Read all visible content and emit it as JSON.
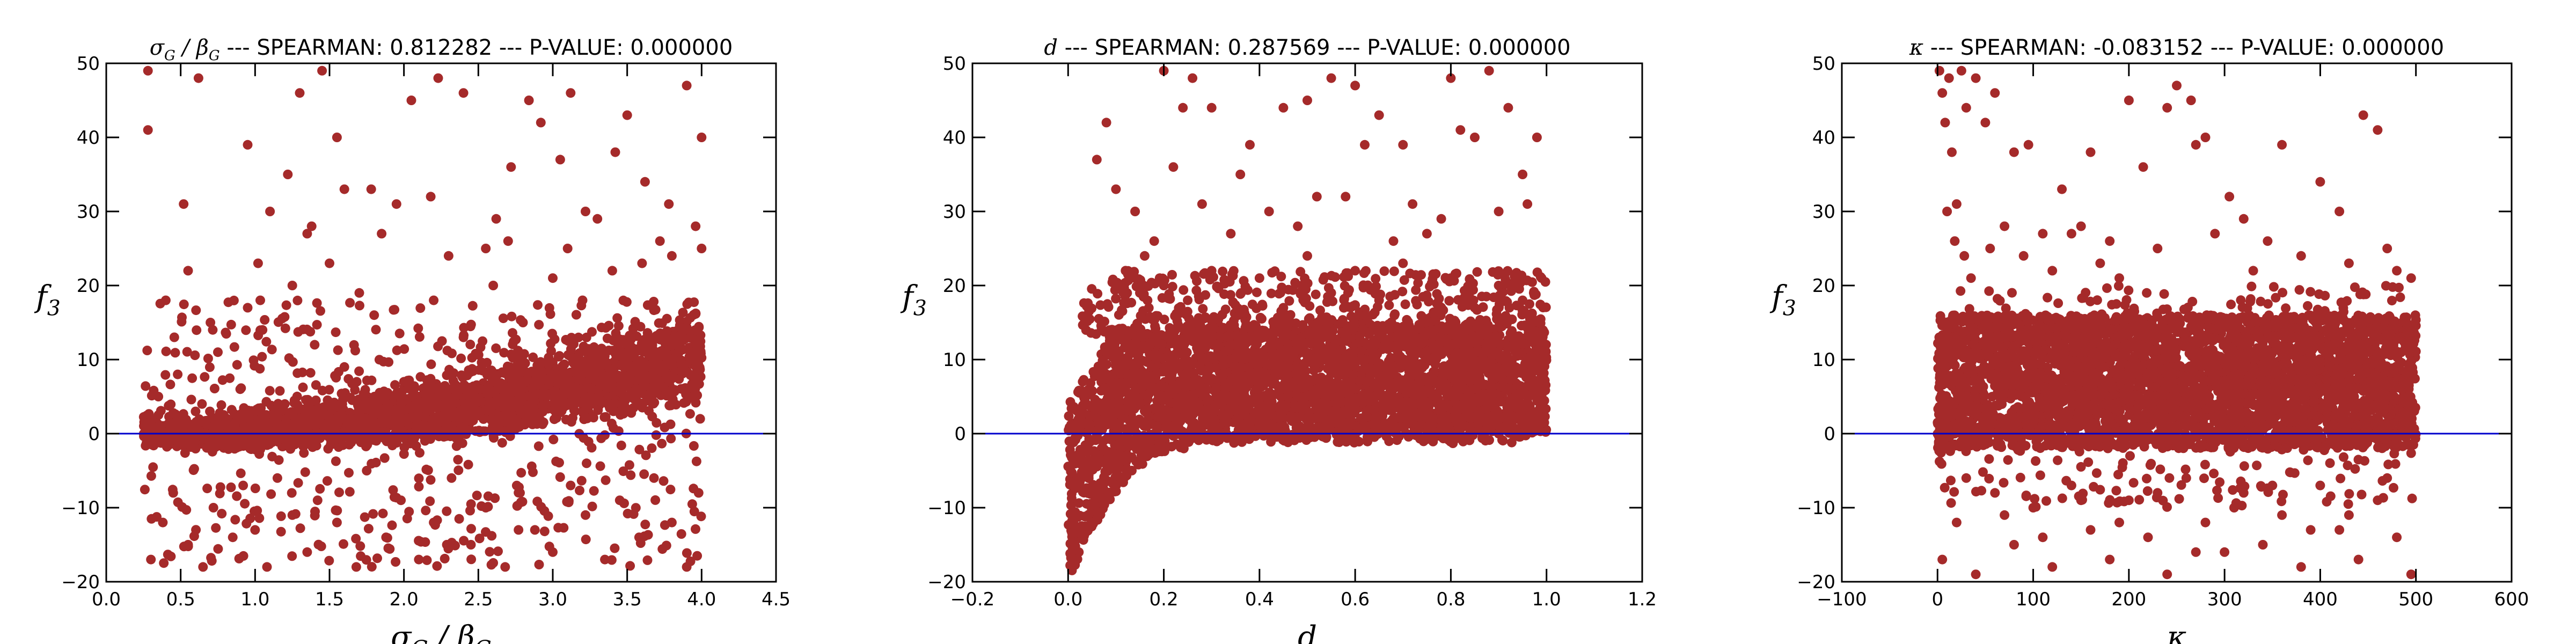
{
  "colors": {
    "points": "#a52a2a",
    "zero_line": "#0000cc",
    "axes": "#000000"
  },
  "panels": [
    {
      "title_prefix": "σ_G / β_G",
      "title_suffix": " --- SPEARMAN: 0.812282 --- P-VALUE: 0.000000",
      "xlabel": "σ_G / β_G",
      "ylabel": "f_3"
    },
    {
      "title_prefix": "d",
      "title_suffix": " --- SPEARMAN: 0.287569 --- P-VALUE: 0.000000",
      "xlabel": "d",
      "ylabel": "f_3"
    },
    {
      "title_prefix": "κ",
      "title_suffix": " --- SPEARMAN: -0.083152 --- P-VALUE: 0.000000",
      "xlabel": "κ",
      "ylabel": "f_3"
    }
  ],
  "chart_data": [
    {
      "type": "scatter",
      "title": "σ_G / β_G --- SPEARMAN: 0.812282 --- P-VALUE: 0.000000",
      "xlabel": "σ_G / β_G",
      "ylabel": "f_3",
      "xlim": [
        0.0,
        4.5
      ],
      "ylim": [
        -20,
        50
      ],
      "xticks": [
        "0.0",
        "0.5",
        "1.0",
        "1.5",
        "2.0",
        "2.5",
        "3.0",
        "3.5",
        "4.0",
        "4.5"
      ],
      "yticks": [
        "−20",
        "−10",
        "0",
        "10",
        "20",
        "30",
        "40",
        "50"
      ],
      "reference_line_y": 0,
      "grid": false,
      "series": [
        {
          "color": "#a52a2a",
          "points": [
            [
              0.28,
              49
            ],
            [
              0.28,
              41
            ],
            [
              0.62,
              48
            ],
            [
              0.52,
              31
            ],
            [
              0.95,
              39
            ],
            [
              1.02,
              23
            ],
            [
              1.1,
              30
            ],
            [
              1.22,
              35
            ],
            [
              1.3,
              46
            ],
            [
              1.35,
              27
            ],
            [
              1.38,
              28
            ],
            [
              1.45,
              49
            ],
            [
              1.55,
              40
            ],
            [
              1.6,
              33
            ],
            [
              1.78,
              33
            ],
            [
              1.85,
              27
            ],
            [
              1.95,
              31
            ],
            [
              2.05,
              45
            ],
            [
              2.18,
              32
            ],
            [
              2.23,
              48
            ],
            [
              2.4,
              46
            ],
            [
              2.55,
              25
            ],
            [
              2.62,
              29
            ],
            [
              2.72,
              36
            ],
            [
              2.84,
              45
            ],
            [
              2.92,
              42
            ],
            [
              3.05,
              37
            ],
            [
              3.12,
              46
            ],
            [
              3.22,
              30
            ],
            [
              3.3,
              29
            ],
            [
              3.42,
              38
            ],
            [
              3.5,
              43
            ],
            [
              3.62,
              34
            ],
            [
              3.72,
              26
            ],
            [
              3.78,
              31
            ],
            [
              3.9,
              47
            ],
            [
              4.0,
              40
            ],
            [
              4.0,
              25
            ],
            [
              3.96,
              28
            ],
            [
              0.3,
              -17
            ],
            [
              0.38,
              -12
            ],
            [
              0.45,
              -8
            ],
            [
              0.55,
              -15
            ],
            [
              0.65,
              -18
            ],
            [
              0.72,
              -10
            ],
            [
              0.85,
              -14
            ],
            [
              0.92,
              -7
            ],
            [
              1.0,
              -13
            ],
            [
              1.08,
              -18
            ],
            [
              1.15,
              -6
            ],
            [
              1.25,
              -11
            ],
            [
              1.35,
              -16
            ],
            [
              1.42,
              -9
            ],
            [
              1.55,
              -12
            ],
            [
              1.68,
              -18
            ],
            [
              1.75,
              -5
            ],
            [
              1.88,
              -14
            ],
            [
              1.98,
              -9
            ],
            [
              2.1,
              -17
            ],
            [
              2.2,
              -12
            ],
            [
              2.32,
              -6
            ],
            [
              2.45,
              -15
            ],
            [
              2.55,
              -10
            ],
            [
              2.68,
              -18
            ],
            [
              2.78,
              -8
            ],
            [
              2.88,
              -13
            ],
            [
              3.0,
              -16
            ],
            [
              3.12,
              -7
            ],
            [
              3.22,
              -11
            ],
            [
              3.35,
              -17
            ],
            [
              3.45,
              -9
            ],
            [
              3.58,
              -14
            ],
            [
              3.68,
              -6
            ],
            [
              3.8,
              -12
            ],
            [
              3.9,
              -18
            ],
            [
              3.98,
              -8
            ],
            [
              0.35,
              5
            ],
            [
              0.48,
              8
            ],
            [
              0.6,
              3
            ],
            [
              0.75,
              11
            ],
            [
              0.9,
              6
            ],
            [
              1.05,
              14
            ],
            [
              1.2,
              4
            ],
            [
              1.4,
              12
            ],
            [
              1.6,
              9
            ],
            [
              1.8,
              16
            ],
            [
              2.0,
              7
            ],
            [
              2.2,
              18
            ],
            [
              2.4,
              13
            ],
            [
              2.6,
              20
            ],
            [
              2.8,
              15
            ],
            [
              3.0,
              21
            ],
            [
              3.2,
              18
            ],
            [
              3.4,
              22
            ],
            [
              3.6,
              23
            ],
            [
              3.8,
              24
            ],
            [
              0.4,
              18
            ],
            [
              0.55,
              22
            ],
            [
              0.7,
              15
            ],
            [
              0.95,
              17
            ],
            [
              1.25,
              20
            ],
            [
              1.5,
              23
            ],
            [
              1.7,
              19
            ],
            [
              2.3,
              24
            ],
            [
              2.7,
              26
            ],
            [
              3.1,
              25
            ]
          ]
        }
      ]
    },
    {
      "type": "scatter",
      "title": "d --- SPEARMAN: 0.287569 --- P-VALUE: 0.000000",
      "xlabel": "d",
      "ylabel": "f_3",
      "xlim": [
        -0.2,
        1.2
      ],
      "ylim": [
        -20,
        50
      ],
      "xticks": [
        "−0.2",
        "0.0",
        "0.2",
        "0.4",
        "0.6",
        "0.8",
        "1.0",
        "1.2"
      ],
      "yticks": [
        "−20",
        "−10",
        "0",
        "10",
        "20",
        "30",
        "40",
        "50"
      ],
      "reference_line_y": 0,
      "grid": false,
      "series": [
        {
          "color": "#a52a2a",
          "points": [
            [
              0.2,
              49
            ],
            [
              0.22,
              36
            ],
            [
              0.24,
              44
            ],
            [
              0.26,
              48
            ],
            [
              0.3,
              44
            ],
            [
              0.38,
              39
            ],
            [
              0.45,
              44
            ],
            [
              0.5,
              45
            ],
            [
              0.52,
              32
            ],
            [
              0.55,
              48
            ],
            [
              0.6,
              47
            ],
            [
              0.62,
              39
            ],
            [
              0.65,
              43
            ],
            [
              0.7,
              39
            ],
            [
              0.72,
              31
            ],
            [
              0.75,
              27
            ],
            [
              0.8,
              48
            ],
            [
              0.82,
              41
            ],
            [
              0.85,
              40
            ],
            [
              0.88,
              49
            ],
            [
              0.9,
              30
            ],
            [
              0.92,
              44
            ],
            [
              0.95,
              35
            ],
            [
              0.98,
              40
            ],
            [
              0.1,
              33
            ],
            [
              0.14,
              30
            ],
            [
              0.18,
              26
            ],
            [
              0.28,
              31
            ],
            [
              0.34,
              27
            ],
            [
              0.42,
              30
            ],
            [
              0.48,
              28
            ],
            [
              0.58,
              32
            ],
            [
              0.68,
              26
            ],
            [
              0.78,
              29
            ],
            [
              0.96,
              31
            ],
            [
              0.06,
              37
            ],
            [
              0.08,
              42
            ],
            [
              0.12,
              22
            ],
            [
              0.16,
              24
            ],
            [
              0.36,
              35
            ],
            [
              0.2,
              20
            ],
            [
              0.3,
              22
            ],
            [
              0.4,
              21
            ],
            [
              0.5,
              24
            ],
            [
              0.6,
              22
            ],
            [
              0.7,
              23
            ],
            [
              0.8,
              21
            ],
            [
              0.9,
              20
            ],
            [
              0.25,
              18
            ],
            [
              0.55,
              19
            ],
            [
              0.85,
              17
            ],
            [
              0.45,
              17
            ],
            [
              0.65,
              18
            ],
            [
              0.95,
              18
            ],
            [
              0.15,
              19
            ]
          ]
        }
      ]
    },
    {
      "type": "scatter",
      "title": "κ --- SPEARMAN: -0.083152 --- P-VALUE: 0.000000",
      "xlabel": "κ",
      "ylabel": "f_3",
      "xlim": [
        -100,
        600
      ],
      "ylim": [
        -20,
        50
      ],
      "xticks": [
        "−100",
        "0",
        "100",
        "200",
        "300",
        "400",
        "500",
        "600"
      ],
      "yticks": [
        "−20",
        "−10",
        "0",
        "10",
        "20",
        "30",
        "40",
        "50"
      ],
      "reference_line_y": 0,
      "grid": false,
      "series": [
        {
          "color": "#a52a2a",
          "points": [
            [
              2,
              49
            ],
            [
              5,
              46
            ],
            [
              8,
              42
            ],
            [
              12,
              48
            ],
            [
              15,
              38
            ],
            [
              20,
              31
            ],
            [
              25,
              49
            ],
            [
              30,
              44
            ],
            [
              40,
              48
            ],
            [
              50,
              42
            ],
            [
              60,
              46
            ],
            [
              80,
              38
            ],
            [
              95,
              39
            ],
            [
              110,
              27
            ],
            [
              130,
              33
            ],
            [
              150,
              28
            ],
            [
              160,
              38
            ],
            [
              180,
              26
            ],
            [
              200,
              45
            ],
            [
              215,
              36
            ],
            [
              240,
              44
            ],
            [
              250,
              47
            ],
            [
              265,
              45
            ],
            [
              270,
              39
            ],
            [
              280,
              40
            ],
            [
              305,
              32
            ],
            [
              320,
              29
            ],
            [
              345,
              26
            ],
            [
              360,
              39
            ],
            [
              400,
              34
            ],
            [
              420,
              30
            ],
            [
              445,
              43
            ],
            [
              460,
              41
            ],
            [
              480,
              22
            ],
            [
              495,
              21
            ],
            [
              10,
              30
            ],
            [
              18,
              26
            ],
            [
              28,
              24
            ],
            [
              35,
              21
            ],
            [
              55,
              25
            ],
            [
              70,
              28
            ],
            [
              90,
              24
            ],
            [
              120,
              22
            ],
            [
              140,
              27
            ],
            [
              170,
              23
            ],
            [
              190,
              21
            ],
            [
              230,
              25
            ],
            [
              290,
              27
            ],
            [
              330,
              22
            ],
            [
              380,
              24
            ],
            [
              430,
              23
            ],
            [
              470,
              25
            ],
            [
              5,
              -17
            ],
            [
              20,
              -12
            ],
            [
              40,
              -19
            ],
            [
              60,
              -8
            ],
            [
              80,
              -15
            ],
            [
              100,
              -10
            ],
            [
              120,
              -18
            ],
            [
              140,
              -7
            ],
            [
              160,
              -13
            ],
            [
              180,
              -17
            ],
            [
              200,
              -9
            ],
            [
              220,
              -14
            ],
            [
              240,
              -19
            ],
            [
              260,
              -6
            ],
            [
              280,
              -12
            ],
            [
              300,
              -16
            ],
            [
              320,
              -8
            ],
            [
              340,
              -15
            ],
            [
              360,
              -11
            ],
            [
              380,
              -18
            ],
            [
              400,
              -7
            ],
            [
              420,
              -13
            ],
            [
              440,
              -17
            ],
            [
              460,
              -9
            ],
            [
              480,
              -14
            ],
            [
              495,
              -19
            ],
            [
              30,
              -6
            ],
            [
              70,
              -11
            ],
            [
              110,
              -14
            ],
            [
              150,
              -9
            ],
            [
              190,
              -12
            ],
            [
              230,
              -8
            ],
            [
              270,
              -16
            ],
            [
              310,
              -10
            ],
            [
              350,
              -7
            ],
            [
              390,
              -13
            ],
            [
              430,
              -11
            ],
            [
              470,
              -6
            ]
          ]
        }
      ]
    }
  ]
}
